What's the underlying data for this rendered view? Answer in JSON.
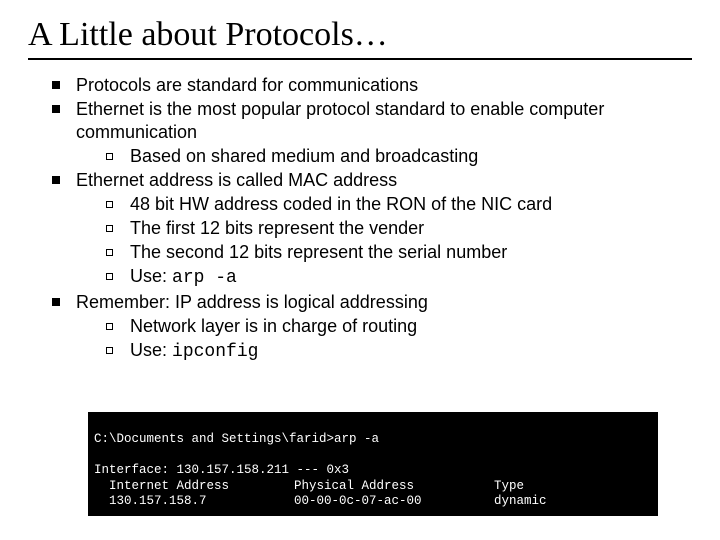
{
  "title": "A Little about Protocols…",
  "bullets": {
    "b1": "Protocols are standard for communications",
    "b2": "Ethernet is the most popular protocol standard to enable computer communication",
    "b2s1": "Based on shared medium and broadcasting",
    "b3": "Ethernet address is called MAC address",
    "b3s1": "48 bit HW address coded in the RON of the NIC card",
    "b3s2": "The first 12 bits represent the vender",
    "b3s3": "The second 12 bits represent the serial number",
    "b3s4_pre": "Use: ",
    "b3s4_code": "arp -a",
    "b4": "Remember: IP address is logical addressing",
    "b4s1": "Network layer is in charge of routing",
    "b4s2_pre": "Use: ",
    "b4s2_code": "ipconfig"
  },
  "terminal": {
    "prompt": "C:\\Documents and Settings\\farid>arp -a",
    "iface": "Interface: 130.157.158.211 --- 0x3",
    "hdr_a": "  Internet Address",
    "hdr_b": "Physical Address",
    "hdr_c": "Type",
    "row_a": "  130.157.158.7",
    "row_b": "00-00-0c-07-ac-00",
    "row_c": "dynamic"
  },
  "colors": {
    "background": "#ffffff",
    "text": "#000000",
    "terminal_bg": "#000000",
    "terminal_fg": "#ffffff"
  },
  "typography": {
    "title_font": "Times New Roman",
    "title_fontsize": 34,
    "body_font": "Arial",
    "body_fontsize": 18,
    "code_font": "Courier New",
    "terminal_fontsize": 12.5
  }
}
